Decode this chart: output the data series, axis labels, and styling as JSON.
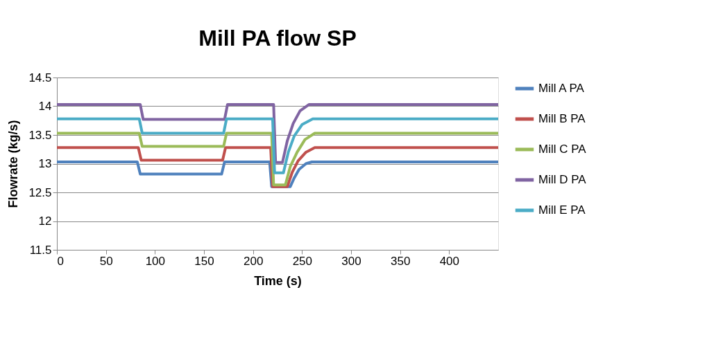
{
  "chart_data": {
    "type": "line",
    "title": "Mill PA flow SP",
    "xlabel": "Time (s)",
    "ylabel": "Flowrate (kg/s)",
    "xlim": [
      0,
      450
    ],
    "xticks": [
      0,
      50,
      100,
      150,
      200,
      250,
      300,
      350,
      400
    ],
    "ylim": [
      11.5,
      14.5
    ],
    "yticks": [
      11.5,
      12,
      12.5,
      13,
      13.5,
      14,
      14.5
    ],
    "grid": "y",
    "legend": "right",
    "marker": "none",
    "line_style": "solid",
    "series": [
      {
        "name": "Mill A PA",
        "color": "#4f81bd",
        "x": [
          0,
          82,
          85,
          168,
          171,
          217,
          219,
          238,
          242,
          247,
          254,
          260,
          450
        ],
        "values": [
          13.03,
          13.03,
          12.82,
          12.82,
          13.03,
          13.03,
          12.6,
          12.6,
          12.75,
          12.9,
          13.0,
          13.03,
          13.03
        ]
      },
      {
        "name": "Mill B PA",
        "color": "#c0504d",
        "x": [
          0,
          83,
          86,
          169,
          172,
          218,
          220,
          235,
          240,
          246,
          254,
          263,
          450
        ],
        "values": [
          13.28,
          13.28,
          13.06,
          13.06,
          13.28,
          13.28,
          12.6,
          12.6,
          12.85,
          13.05,
          13.2,
          13.28,
          13.28
        ]
      },
      {
        "name": "Mill C PA",
        "color": "#9bbb59",
        "x": [
          0,
          84,
          87,
          170,
          173,
          219,
          221,
          233,
          238,
          245,
          253,
          263,
          450
        ],
        "values": [
          13.53,
          13.53,
          13.3,
          13.3,
          13.53,
          13.53,
          12.63,
          12.63,
          12.95,
          13.2,
          13.42,
          13.53,
          13.53
        ]
      },
      {
        "name": "Mill D PA",
        "color": "#8064a2",
        "x": [
          0,
          85,
          88,
          171,
          174,
          221,
          223,
          230,
          235,
          241,
          248,
          257,
          450
        ],
        "values": [
          14.03,
          14.03,
          13.77,
          13.77,
          14.03,
          14.03,
          13.02,
          13.02,
          13.4,
          13.7,
          13.92,
          14.03,
          14.03
        ]
      },
      {
        "name": "Mill E PA",
        "color": "#4bacc6",
        "x": [
          0,
          84,
          87,
          170,
          173,
          220,
          222,
          231,
          236,
          242,
          250,
          261,
          450
        ],
        "values": [
          13.78,
          13.78,
          13.53,
          13.53,
          13.78,
          13.78,
          12.84,
          12.84,
          13.2,
          13.48,
          13.68,
          13.78,
          13.78
        ]
      }
    ]
  }
}
